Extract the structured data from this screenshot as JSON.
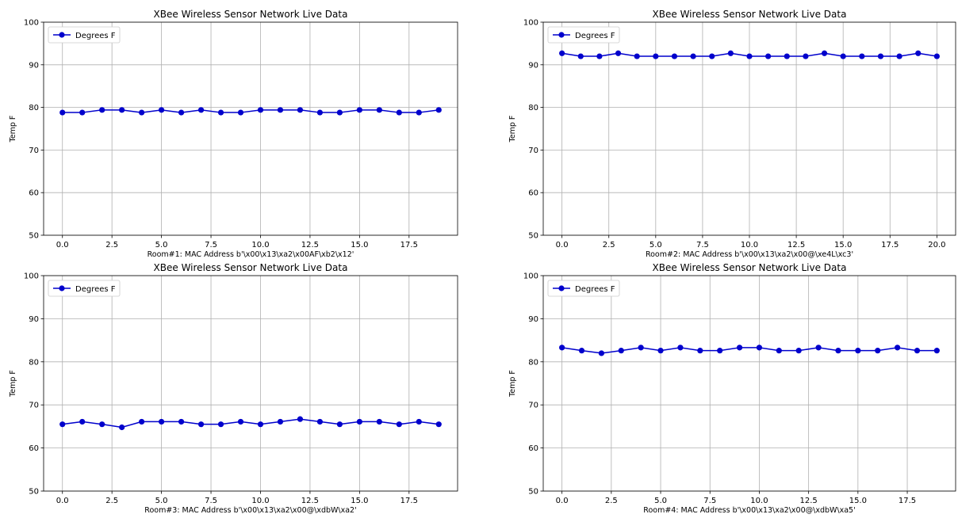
{
  "chart_data": [
    {
      "type": "line",
      "title": "XBee Wireless Sensor Network Live Data",
      "xlabel": "Room#1: MAC Address b'\\x00\\x13\\xa2\\x00AF\\xb2\\x12'",
      "ylabel": "Temp F",
      "xlim": [
        -0.95,
        19.95
      ],
      "ylim": [
        50,
        100
      ],
      "xticks": [
        0,
        2.5,
        5,
        7.5,
        10,
        12.5,
        15,
        17.5
      ],
      "xtick_labels": [
        "0.0",
        "2.5",
        "5.0",
        "7.5",
        "10.0",
        "12.5",
        "15.0",
        "17.5"
      ],
      "yticks": [
        50,
        60,
        70,
        80,
        90,
        100
      ],
      "grid": true,
      "legend_position": "top-left",
      "color": "#0000cc",
      "series": [
        {
          "name": "Degrees F",
          "x": [
            0,
            1,
            2,
            3,
            4,
            5,
            6,
            7,
            8,
            9,
            10,
            11,
            12,
            13,
            14,
            15,
            16,
            17,
            18,
            19
          ],
          "y": [
            78.8,
            78.8,
            79.4,
            79.4,
            78.8,
            79.4,
            78.8,
            79.4,
            78.8,
            78.8,
            79.4,
            79.4,
            79.4,
            78.8,
            78.8,
            79.4,
            79.4,
            78.8,
            78.8,
            79.4
          ]
        }
      ]
    },
    {
      "type": "line",
      "title": "XBee Wireless Sensor Network Live Data",
      "xlabel": "Room#2: MAC Address b'\\x00\\x13\\xa2\\x00@\\xe4L\\xc3'",
      "ylabel": "Temp F",
      "xlim": [
        -1.0,
        21.0
      ],
      "ylim": [
        50,
        100
      ],
      "xticks": [
        0,
        2.5,
        5,
        7.5,
        10,
        12.5,
        15,
        17.5,
        20
      ],
      "xtick_labels": [
        "0.0",
        "2.5",
        "5.0",
        "7.5",
        "10.0",
        "12.5",
        "15.0",
        "17.5",
        "20.0"
      ],
      "yticks": [
        50,
        60,
        70,
        80,
        90,
        100
      ],
      "grid": true,
      "legend_position": "top-left",
      "color": "#0000cc",
      "series": [
        {
          "name": "Degrees F",
          "x": [
            0,
            1,
            2,
            3,
            4,
            5,
            6,
            7,
            8,
            9,
            10,
            11,
            12,
            13,
            14,
            15,
            16,
            17,
            18,
            19,
            20
          ],
          "y": [
            92.7,
            92.0,
            92.0,
            92.7,
            92.0,
            92.0,
            92.0,
            92.0,
            92.0,
            92.7,
            92.0,
            92.0,
            92.0,
            92.0,
            92.7,
            92.0,
            92.0,
            92.0,
            92.0,
            92.7,
            92.0
          ]
        }
      ]
    },
    {
      "type": "line",
      "title": "XBee Wireless Sensor Network Live Data",
      "xlabel": "Room#3: MAC Address b'\\x00\\x13\\xa2\\x00@\\xdbW\\xa2'",
      "ylabel": "Temp F",
      "xlim": [
        -0.95,
        19.95
      ],
      "ylim": [
        50,
        100
      ],
      "xticks": [
        0,
        2.5,
        5,
        7.5,
        10,
        12.5,
        15,
        17.5
      ],
      "xtick_labels": [
        "0.0",
        "2.5",
        "5.0",
        "7.5",
        "10.0",
        "12.5",
        "15.0",
        "17.5"
      ],
      "yticks": [
        50,
        60,
        70,
        80,
        90,
        100
      ],
      "grid": true,
      "legend_position": "top-left",
      "color": "#0000cc",
      "series": [
        {
          "name": "Degrees F",
          "x": [
            0,
            1,
            2,
            3,
            4,
            5,
            6,
            7,
            8,
            9,
            10,
            11,
            12,
            13,
            14,
            15,
            16,
            17,
            18,
            19
          ],
          "y": [
            65.5,
            66.1,
            65.5,
            64.8,
            66.1,
            66.1,
            66.1,
            65.5,
            65.5,
            66.1,
            65.5,
            66.1,
            66.7,
            66.1,
            65.5,
            66.1,
            66.1,
            65.5,
            66.1,
            65.5
          ]
        }
      ]
    },
    {
      "type": "line",
      "title": "XBee Wireless Sensor Network Live Data",
      "xlabel": "Room#4: MAC Address b'\\x00\\x13\\xa2\\x00@\\xdbW\\xa5'",
      "ylabel": "Temp F",
      "xlim": [
        -0.95,
        19.95
      ],
      "ylim": [
        50,
        100
      ],
      "xticks": [
        0,
        2.5,
        5,
        7.5,
        10,
        12.5,
        15,
        17.5
      ],
      "xtick_labels": [
        "0.0",
        "2.5",
        "5.0",
        "7.5",
        "10.0",
        "12.5",
        "15.0",
        "17.5"
      ],
      "yticks": [
        50,
        60,
        70,
        80,
        90,
        100
      ],
      "grid": true,
      "legend_position": "top-left",
      "color": "#0000cc",
      "series": [
        {
          "name": "Degrees F",
          "x": [
            0,
            1,
            2,
            3,
            4,
            5,
            6,
            7,
            8,
            9,
            10,
            11,
            12,
            13,
            14,
            15,
            16,
            17,
            18,
            19
          ],
          "y": [
            83.3,
            82.6,
            82.0,
            82.6,
            83.3,
            82.6,
            83.3,
            82.6,
            82.6,
            83.3,
            83.3,
            82.6,
            82.6,
            83.3,
            82.6,
            82.6,
            82.6,
            83.3,
            82.6,
            82.6
          ]
        }
      ]
    }
  ]
}
